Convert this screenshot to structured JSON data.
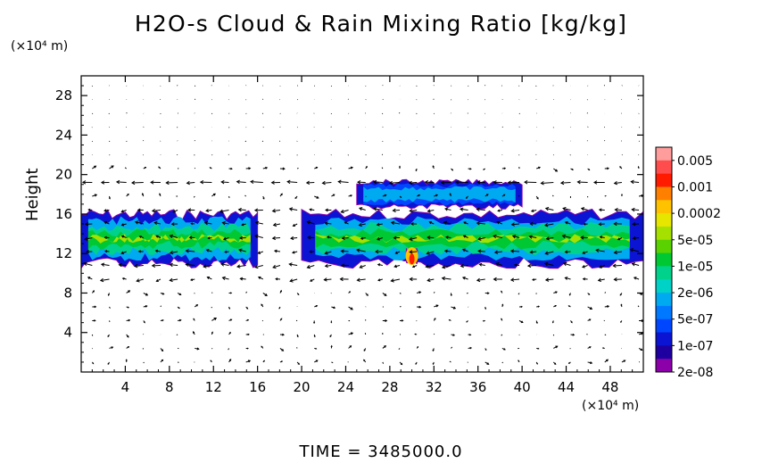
{
  "chart_data": {
    "type": "heatmap",
    "title": "H2O-s Cloud & Rain Mixing Ratio [kg/kg]",
    "ylabel": "Height",
    "x_unit": "(×10⁴ m)",
    "y_unit": "(×10⁴ m)",
    "xlim": [
      0,
      51
    ],
    "ylim": [
      0,
      30
    ],
    "xticks": [
      4,
      8,
      12,
      16,
      20,
      24,
      28,
      32,
      36,
      40,
      44,
      48
    ],
    "yticks": [
      4,
      8,
      12,
      16,
      20,
      24,
      28
    ],
    "grid": false,
    "overlay": "wind vectors",
    "colorbar": {
      "placement": "right",
      "labels": [
        "0.005",
        "0.001",
        "0.0002",
        "5e-05",
        "1e-05",
        "2e-06",
        "5e-07",
        "1e-07",
        "2e-08"
      ],
      "colors": [
        "#ff9c9c",
        "#ff4d4d",
        "#ff1a00",
        "#ff8000",
        "#ffc200",
        "#e6e600",
        "#a6e000",
        "#5ad200",
        "#00c832",
        "#00d28c",
        "#00d2c8",
        "#00aaf0",
        "#0078ff",
        "#0046ff",
        "#0a14d2",
        "#1e00a0",
        "#8c00aa"
      ]
    },
    "cloud_regions": [
      {
        "x": [
          0,
          16
        ],
        "y": [
          10.5,
          16.5
        ],
        "level": "5e-05"
      },
      {
        "x": [
          20,
          51
        ],
        "y": [
          10.5,
          16.5
        ],
        "level": "1e-05"
      },
      {
        "x": [
          25,
          40
        ],
        "y": [
          16.5,
          19.5
        ],
        "level": "1e-07"
      },
      {
        "x": [
          29.5,
          30.5
        ],
        "y": [
          11,
          12.5
        ],
        "level": "0.0002"
      }
    ]
  },
  "time_label": "TIME  =  3485000.0"
}
